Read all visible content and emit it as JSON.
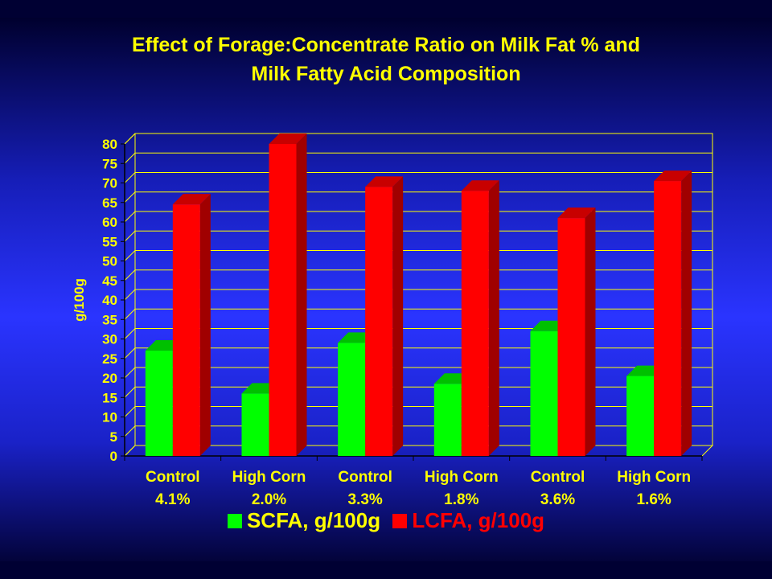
{
  "chart_data": {
    "type": "bar",
    "title": [
      "Effect of Forage:Concentrate Ratio on Milk Fat % and",
      "Milk Fatty Acid Composition"
    ],
    "ylabel": "g/100g",
    "xlabel": "",
    "ylim": [
      0,
      80
    ],
    "yticks": [
      0,
      5,
      10,
      15,
      20,
      25,
      30,
      35,
      40,
      45,
      50,
      55,
      60,
      65,
      70,
      75,
      80
    ],
    "grid": true,
    "legend_position": "bottom",
    "categories": [
      [
        "Control",
        "4.1%"
      ],
      [
        "High Corn",
        "2.0%"
      ],
      [
        "Control",
        "3.3%"
      ],
      [
        "High Corn",
        "1.8%"
      ],
      [
        "Control",
        "3.6%"
      ],
      [
        "High Corn",
        "1.6%"
      ]
    ],
    "series": [
      {
        "name": "SCFA, g/100g",
        "color": "#00ff00",
        "values": [
          27,
          16,
          29,
          18.5,
          32,
          20.5
        ]
      },
      {
        "name": "LCFA, g/100g",
        "color": "#ff0000",
        "values": [
          64.5,
          80,
          69,
          68,
          61,
          70.5
        ]
      }
    ],
    "colors": {
      "title": "#ffff00",
      "axis_text": "#ffff00",
      "plot_border": "#ffff00",
      "legend_series_2_text": "#ff0000",
      "legend_series_1_text": "#ffff00"
    }
  }
}
